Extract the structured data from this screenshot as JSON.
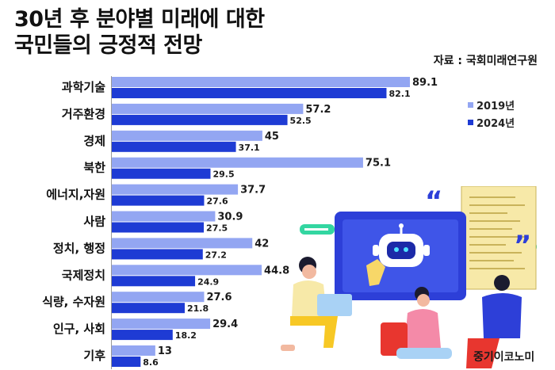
{
  "header": {
    "title_line1": "30년 후 분야별 미래에 대한",
    "title_line2": "국민들의 긍정적 전망",
    "source": "자료 : 국회미래연구원"
  },
  "brand": "중기이코노미",
  "colors": {
    "series_2019": "#93a6f2",
    "series_2024": "#1e3bd4"
  },
  "chart_data": {
    "type": "bar",
    "orientation": "horizontal",
    "categories": [
      "과학기술",
      "거주환경",
      "경제",
      "북한",
      "에너지,자원",
      "사람",
      "정치, 행정",
      "국제정치",
      "식량, 수자원",
      "인구, 사회",
      "기후"
    ],
    "series": [
      {
        "name": "2019년",
        "values": [
          89.1,
          57.2,
          45,
          75.1,
          37.7,
          30.9,
          42,
          44.8,
          27.6,
          29.4,
          13
        ]
      },
      {
        "name": "2024년",
        "values": [
          82.1,
          52.5,
          37.1,
          29.5,
          27.6,
          27.5,
          27.2,
          24.9,
          21.8,
          18.2,
          8.6
        ]
      }
    ],
    "value_labels": [
      [
        "89.1",
        "57.2",
        "45",
        "75.1",
        "37.7",
        "30.9",
        "42",
        "44.8",
        "27.6",
        "29.4",
        "13"
      ],
      [
        "82.1",
        "52.5",
        "37.1",
        "29.5",
        "27.6",
        "27.5",
        "27.2",
        "24.9",
        "21.8",
        "18.2",
        "8.6"
      ]
    ],
    "legend": [
      "2019년",
      "2024년"
    ],
    "legend_position": "right",
    "grid": false,
    "xlim": [
      0,
      100
    ]
  }
}
